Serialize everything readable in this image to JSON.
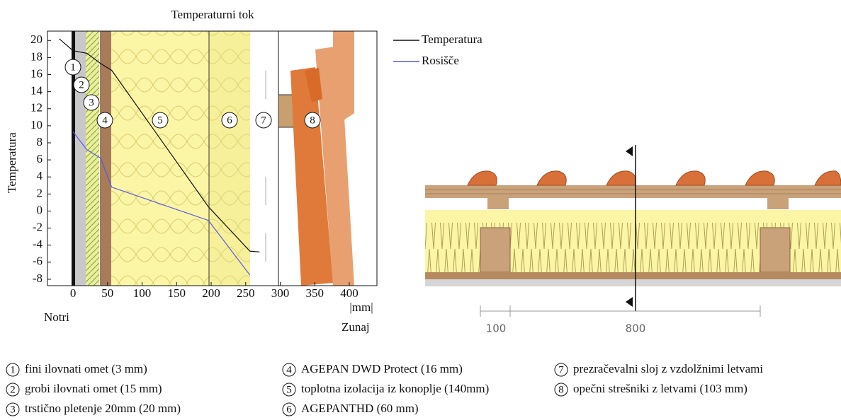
{
  "chart_data": {
    "type": "line",
    "title": "Temperaturni tok",
    "y_label": "Temperatura",
    "x_unit": "|mm|",
    "inside_label": "Notri",
    "outside_label": "Zunaj",
    "x": [
      -20,
      0,
      20,
      40,
      56,
      196,
      256,
      270
    ],
    "series": [
      {
        "name": "Temperatura",
        "color": "#111111",
        "values": [
          20.2,
          18.8,
          18.5,
          17.3,
          16.5,
          0.5,
          -4.7,
          -4.8
        ]
      },
      {
        "name": "Rosišče",
        "color": "#5a5ae0",
        "values": [
          null,
          9.3,
          7.2,
          6.2,
          2.8,
          -1.1,
          -7.5,
          null
        ]
      }
    ],
    "xlim": [
      -37,
      440
    ],
    "ylim": [
      -8.75,
      21.1
    ],
    "xticks": [
      0,
      50,
      100,
      150,
      200,
      250,
      300,
      350,
      400
    ],
    "yticks": [
      -8,
      -6,
      -4,
      -2,
      0,
      2,
      4,
      6,
      8,
      10,
      12,
      14,
      16,
      18,
      20
    ],
    "layer_markers": [
      "1",
      "2",
      "3",
      "4",
      "5",
      "6",
      "7",
      "8"
    ],
    "layers": [
      {
        "number": "1",
        "text": "fini ilovnati omet (3 mm)"
      },
      {
        "number": "2",
        "text": "grobi ilovnati  omet (15 mm)"
      },
      {
        "number": "3",
        "text": "trstično pletenje 20mm  (20 mm)"
      },
      {
        "number": "4",
        "text": "AGEPAN DWD Protect (16 mm)"
      },
      {
        "number": "5",
        "text": "toplotna izolacija  iz konoplje  (140mm)"
      },
      {
        "number": "6",
        "text": "AGEPANTHD (60 mm)"
      },
      {
        "number": "7",
        "text": "prezračevalni sloj  z vzdolžnimi letvami"
      },
      {
        "number": "8",
        "text": "opečni strešniki  z letvami (103 mm)"
      }
    ],
    "dimensions": [
      "100",
      "800"
    ]
  }
}
